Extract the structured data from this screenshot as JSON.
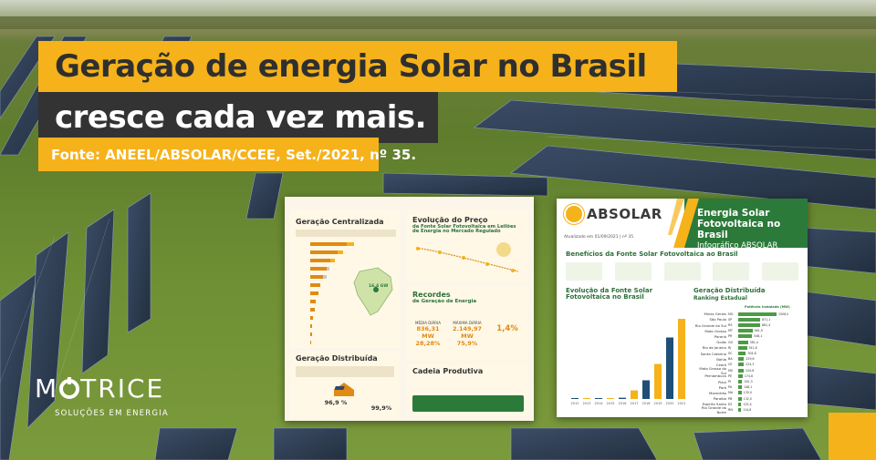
{
  "headline": {
    "line1": "Geração de energia Solar no Brasil",
    "line2": "cresce cada vez mais.",
    "source": "Fonte: ANEEL/ABSOLAR/CCEE, Set./2021, nº 35."
  },
  "logo": {
    "name_start": "M",
    "name_end": "TRICE",
    "tagline": "SOLUÇÕES EM ENERGIA"
  },
  "infographic_left": {
    "geracao_centralizada": "Geração Centralizada",
    "evolucao_preco_title": "Evolução do Preço",
    "evolucao_preco_sub": "da Fonte Solar Fotovoltaica em Leilões de Energia no Mercado Regulado",
    "recordes_title": "Recordes",
    "recordes_sub": "de Geração de Energia",
    "kpi1_label": "MÉDIA DIÁRIA",
    "kpi1_value": "836,31 MW",
    "kpi1_pct": "28,28%",
    "kpi2_label": "MÁXIMA DIÁRIA",
    "kpi2_value": "2.149,97 MW",
    "kpi2_pct": "75,9%",
    "kpi3_value": "1,4%",
    "geracao_distribuida": "Geração Distribuída",
    "pct1": "96,9 %",
    "pct2": "99,9%",
    "cadeia_produtiva": "Cadeia Produtiva",
    "map_value": "16,4 GW"
  },
  "infographic_right": {
    "brand": "ABSOLAR",
    "header_title": "Energia Solar Fotovoltaica no Brasil",
    "header_sub": "Infográfico ABSOLAR",
    "updated": "Atualizado em 01/09/2021 | nº 35",
    "beneficios": "Benefícios da Fonte Solar Fotovoltaica ao Brasil",
    "evolucao_title": "Evolução da Fonte Solar Fotovoltaica no Brasil",
    "gd_title": "Geração Distribuída",
    "gd_sub": "Ranking Estadual",
    "gd_col": "Potência Instalada (MW)",
    "states": [
      "Minas Gerais",
      "São Paulo",
      "Rio Grande do Sul",
      "Mato Grosso",
      "Paraná",
      "Goiás",
      "Rio de Janeiro",
      "Santa Catarina",
      "Bahia",
      "Ceará",
      "Mato Grosso do Sul",
      "Pernambuco",
      "Piauí",
      "Pará",
      "Maranhão",
      "Paraíba",
      "Espírito Santo",
      "Rio Grande do Norte"
    ],
    "state_codes": [
      "MG",
      "SP",
      "RS",
      "MT",
      "PR",
      "GO",
      "RJ",
      "SC",
      "BA",
      "CE",
      "MS",
      "PE",
      "PI",
      "PA",
      "MA",
      "PB",
      "ES",
      "RN"
    ],
    "state_values": [
      1508.0,
      871.1,
      861.4,
      561.9,
      548.1,
      381.4,
      341.6,
      304.8,
      229.6,
      224.3,
      220.6,
      174.8,
      161.3,
      148.1,
      135.0,
      132.0,
      125.4,
      114.8
    ],
    "bar_years": [
      "2012",
      "2013",
      "2014",
      "2015",
      "2016",
      "2017",
      "2018",
      "2019",
      "2020",
      "2021"
    ],
    "bar_values": [
      2,
      8,
      15,
      40,
      160,
      1100,
      2400,
      4500,
      7900,
      10300
    ]
  },
  "colors": {
    "yellow": "#f6b21a",
    "dark": "#333333",
    "green": "#2b7a3a"
  }
}
